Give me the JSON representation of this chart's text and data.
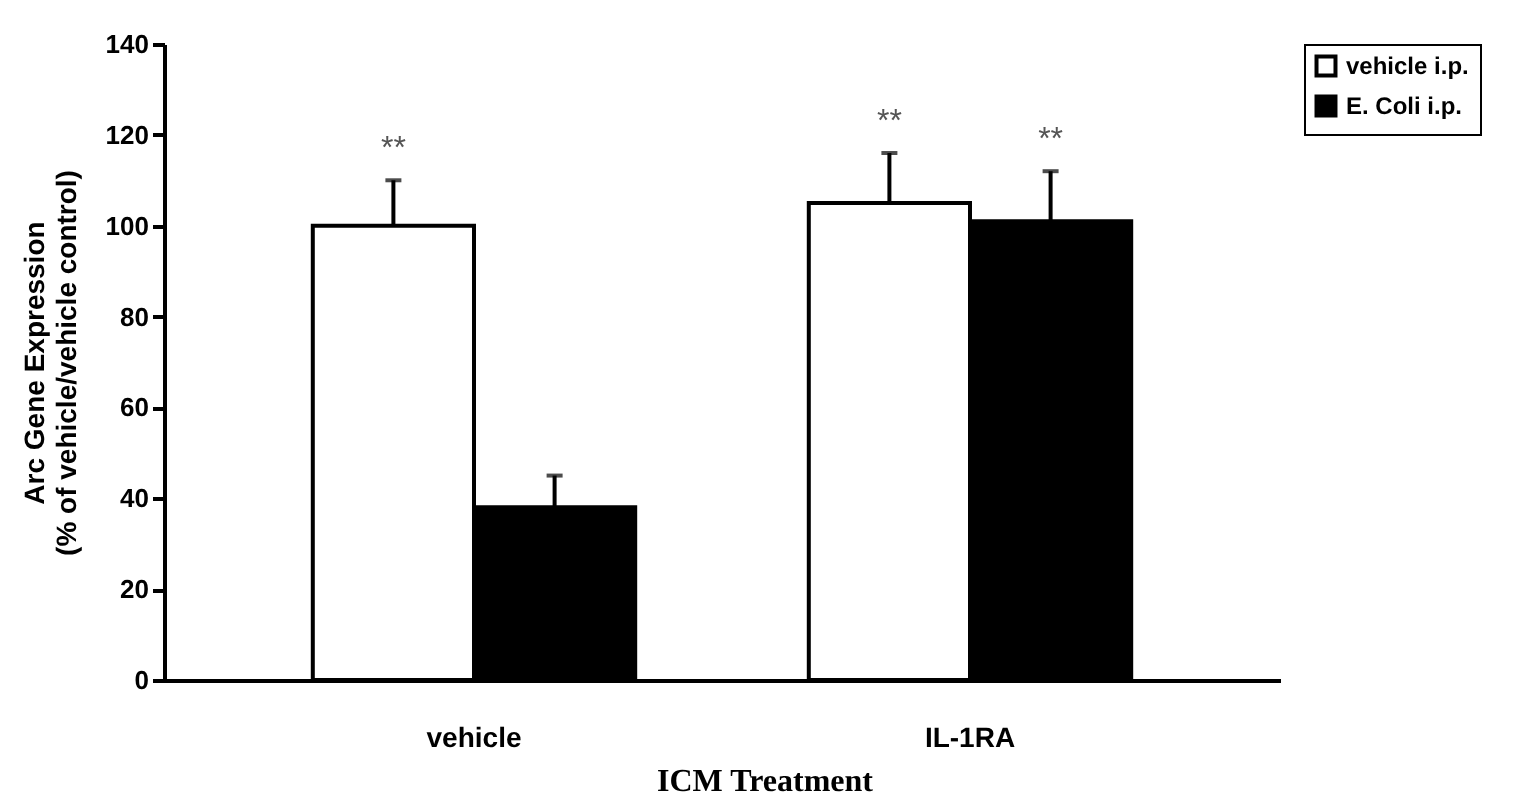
{
  "chart_data": {
    "type": "bar",
    "xlabel": "ICM Treatment",
    "ylabel": "Arc Gene Expression\n(% of vehicle/vehicle control)",
    "categories": [
      "vehicle",
      "IL-1RA"
    ],
    "series": [
      {
        "name": "vehicle i.p.",
        "color": "#ffffff",
        "values": [
          100,
          105
        ],
        "errors": [
          [
            100,
            110
          ],
          [
            105,
            116
          ]
        ]
      },
      {
        "name": "E. Coli i.p.",
        "color": "#000000",
        "values": [
          38,
          101
        ],
        "errors": [
          [
            38,
            45
          ],
          [
            101,
            112
          ]
        ]
      }
    ],
    "ylim": [
      0,
      140
    ],
    "yticks": [
      0,
      20,
      40,
      60,
      80,
      100,
      120,
      140
    ],
    "grid": false,
    "legend": "right",
    "annotations": [
      "**",
      "**",
      "**"
    ]
  }
}
